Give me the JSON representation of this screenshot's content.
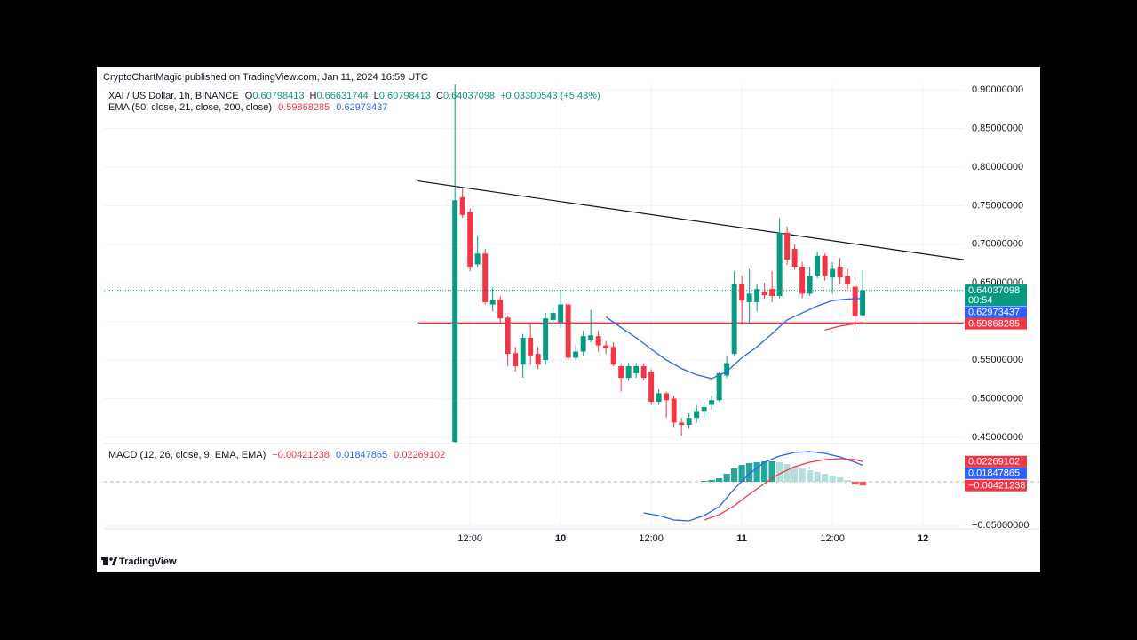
{
  "header": {
    "attribution": "CryptoChartMagic published on TradingView.com, Jan 11, 2024 16:59 UTC",
    "symbol": "XAI / US Dollar, 1h, BINANCE",
    "ohlc_labels": [
      "O",
      "H",
      "L",
      "C"
    ],
    "change": "+0.03300543 (+5.43%)"
  },
  "indicators": {
    "ema": "EMA (50, close, 21, close, 200, close)",
    "macd": "MACD (12, 26, close, 9, EMA, EMA)"
  },
  "footer": {
    "brand": "TradingView"
  },
  "chart_data": [
    {
      "type": "candlestick",
      "up_color": "#089981",
      "down_color": "#f23645",
      "countdown": "00:54",
      "grid": true,
      "xlim": [
        -36.5,
        77.4
      ],
      "ylim": [
        0.443,
        0.907
      ],
      "xticks": [
        {
          "value": 12,
          "label": "12:00"
        },
        {
          "value": 24,
          "label": "10"
        },
        {
          "value": 36,
          "label": "12:00"
        },
        {
          "value": 48,
          "label": "11"
        },
        {
          "value": 60,
          "label": "12:00"
        },
        {
          "value": 72,
          "label": "12"
        }
      ],
      "yticks": [
        {
          "value": 0.45,
          "label": "0.45000000"
        },
        {
          "value": 0.5,
          "label": "0.50000000"
        },
        {
          "value": 0.55,
          "label": "0.55000000"
        },
        {
          "value": 0.6,
          "label": "0.60000000"
        },
        {
          "value": 0.65,
          "label": "0.65000000"
        },
        {
          "value": 0.7,
          "label": "0.70000000"
        },
        {
          "value": 0.75,
          "label": "0.75000000"
        },
        {
          "value": 0.8,
          "label": "0.80000000"
        },
        {
          "value": 0.85,
          "label": "0.85000000"
        },
        {
          "value": 0.9,
          "label": "0.90000000"
        }
      ],
      "candles": {
        "x": [
          10,
          11,
          12,
          13,
          14,
          15,
          16,
          17,
          18,
          19,
          20,
          21,
          22,
          23,
          24,
          25,
          26,
          27,
          28,
          29,
          30,
          31,
          32,
          33,
          34,
          35,
          36,
          37,
          38,
          39,
          40,
          41,
          42,
          43,
          44,
          45,
          46,
          47,
          48,
          49,
          50,
          51,
          52,
          53,
          54,
          55,
          56,
          57,
          58,
          59,
          60,
          61,
          62,
          63,
          64
        ],
        "open": [
          0.444,
          0.761,
          0.742,
          0.674,
          0.688,
          0.622,
          0.628,
          0.605,
          0.559,
          0.544,
          0.579,
          0.558,
          0.55,
          0.602,
          0.599,
          0.622,
          0.553,
          0.561,
          0.576,
          0.581,
          0.569,
          0.567,
          0.542,
          0.527,
          0.533,
          0.542,
          0.535,
          0.496,
          0.507,
          0.5,
          0.469,
          0.466,
          0.475,
          0.484,
          0.492,
          0.498,
          0.53,
          0.558,
          0.648,
          0.625,
          0.625,
          0.638,
          0.642,
          0.633,
          0.715,
          0.694,
          0.671,
          0.636,
          0.659,
          0.685,
          0.657,
          0.671,
          0.659,
          0.645,
          0.60798413
        ],
        "high": [
          0.907,
          0.772,
          0.746,
          0.711,
          0.694,
          0.644,
          0.633,
          0.607,
          0.567,
          0.584,
          0.596,
          0.567,
          0.611,
          0.619,
          0.641,
          0.627,
          0.569,
          0.588,
          0.615,
          0.588,
          0.575,
          0.573,
          0.544,
          0.546,
          0.546,
          0.546,
          0.538,
          0.512,
          0.509,
          0.504,
          0.475,
          0.481,
          0.492,
          0.496,
          0.504,
          0.535,
          0.556,
          0.665,
          0.659,
          0.668,
          0.648,
          0.65,
          0.665,
          0.734,
          0.723,
          0.7,
          0.677,
          0.671,
          0.69,
          0.688,
          0.677,
          0.682,
          0.668,
          0.65,
          0.66631744
        ],
        "low": [
          0.443,
          0.734,
          0.665,
          0.671,
          0.622,
          0.613,
          0.599,
          0.542,
          0.535,
          0.527,
          0.544,
          0.538,
          0.544,
          0.596,
          0.592,
          0.55,
          0.55,
          0.556,
          0.573,
          0.561,
          0.558,
          0.542,
          0.509,
          0.523,
          0.527,
          0.523,
          0.492,
          0.492,
          0.475,
          0.463,
          0.452,
          0.461,
          0.469,
          0.475,
          0.486,
          0.496,
          0.527,
          0.556,
          0.596,
          0.599,
          0.613,
          0.629,
          0.625,
          0.63,
          0.673,
          0.667,
          0.63,
          0.633,
          0.656,
          0.653,
          0.636,
          0.648,
          0.642,
          0.59,
          0.60798413
        ],
        "close": [
          0.757,
          0.738,
          0.671,
          0.688,
          0.625,
          0.628,
          0.604,
          0.558,
          0.542,
          0.579,
          0.556,
          0.544,
          0.604,
          0.611,
          0.622,
          0.553,
          0.561,
          0.581,
          0.582,
          0.569,
          0.565,
          0.544,
          0.527,
          0.542,
          0.542,
          0.527,
          0.496,
          0.507,
          0.498,
          0.469,
          0.466,
          0.475,
          0.484,
          0.489,
          0.498,
          0.533,
          0.546,
          0.648,
          0.627,
          0.636,
          0.642,
          0.634,
          0.633,
          0.715,
          0.68,
          0.671,
          0.636,
          0.659,
          0.685,
          0.659,
          0.668,
          0.657,
          0.648,
          0.607,
          0.64037098
        ]
      },
      "series": [
        {
          "color": "#f23645",
          "x": [
            59,
            61,
            63,
            64
          ],
          "values": [
            0.589,
            0.594,
            0.597,
            0.59868285
          ]
        },
        {
          "color": "#2962ff",
          "x": [
            30,
            32,
            34,
            36,
            38,
            40,
            42,
            44,
            46,
            48,
            50,
            52,
            54,
            56,
            58,
            60,
            62,
            64
          ],
          "values": [
            0.606,
            0.592,
            0.579,
            0.564,
            0.55,
            0.539,
            0.531,
            0.526,
            0.535,
            0.553,
            0.567,
            0.584,
            0.602,
            0.611,
            0.62,
            0.627,
            0.629,
            0.62973437
          ]
        }
      ],
      "drawings": {
        "trendline": {
          "x": [
            5.1,
            77.4
          ],
          "y": [
            0.782,
            0.68
          ],
          "color": "#131722"
        },
        "hline": {
          "x_start": 5.1,
          "y": 0.598,
          "color": "#f23645"
        }
      }
    },
    {
      "type": "macd",
      "xlim": [
        -36.5,
        77.4
      ],
      "ylim": [
        -0.053,
        0.042
      ],
      "yticks": [
        {
          "value": -0.05,
          "label": "−0.05000000"
        }
      ],
      "histogram": {
        "x": [
          43,
          44,
          45,
          46,
          47,
          48,
          49,
          50,
          51,
          52,
          53,
          54,
          55,
          56,
          57,
          58,
          59,
          60,
          61,
          62,
          63,
          64
        ],
        "values": [
          0.001,
          0.002,
          0.004,
          0.009,
          0.015,
          0.019,
          0.021,
          0.022,
          0.023,
          0.023,
          0.022,
          0.02,
          0.017,
          0.015,
          0.013,
          0.011,
          0.009,
          0.007,
          0.005,
          0.002,
          -0.003,
          -0.00421238
        ],
        "value_labels": [
          null,
          null,
          null,
          null,
          null,
          null,
          null,
          null,
          null,
          null,
          null,
          null,
          null,
          null,
          null,
          null,
          null,
          null,
          null,
          null,
          null,
          "−0.00421238"
        ],
        "colors": [
          "#26a69a",
          "#b2dfdb",
          "#ffcdd2",
          "#ff5252"
        ],
        "label_color": "#f23645"
      },
      "series": [
        {
          "color": "#2962ff",
          "x": [
            35,
            37,
            39,
            41,
            43,
            45,
            47,
            49,
            51,
            53,
            55,
            57,
            59,
            61,
            63,
            64
          ],
          "values": [
            -0.035,
            -0.038,
            -0.043,
            -0.044,
            -0.038,
            -0.028,
            -0.008,
            0.009,
            0.022,
            0.029,
            0.033,
            0.034,
            0.032,
            0.028,
            0.022,
            0.01847865
          ]
        },
        {
          "color": "#f23645",
          "x": [
            43,
            45,
            47,
            49,
            51,
            53,
            55,
            57,
            59,
            61,
            63,
            64
          ],
          "values": [
            -0.043,
            -0.037,
            -0.027,
            -0.014,
            -0.002,
            0.009,
            0.017,
            0.022,
            0.025,
            0.026,
            0.025,
            0.02269102
          ]
        }
      ]
    }
  ]
}
